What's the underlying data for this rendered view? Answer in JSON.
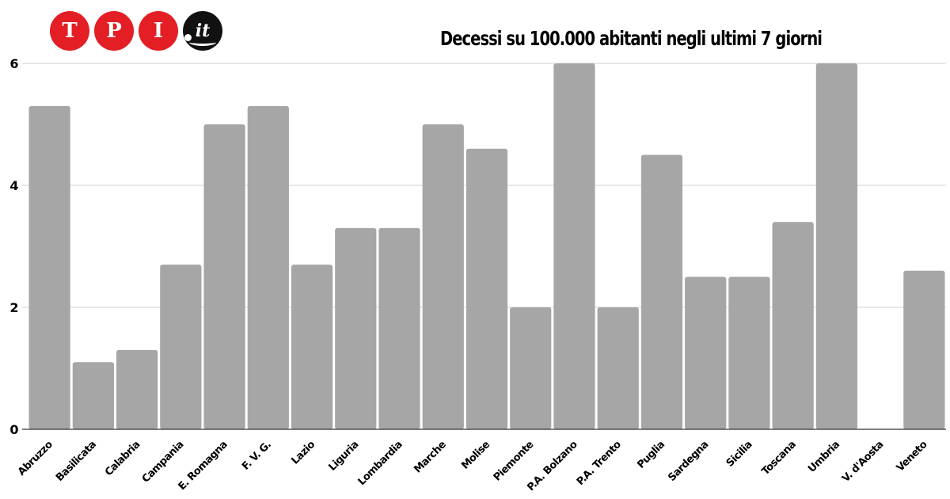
{
  "logo": {
    "letters": [
      "T",
      "P",
      "I"
    ],
    "suffix": "it"
  },
  "colors": {
    "bar": "#a6a6a6",
    "grid": "#d0d0d0",
    "axis": "#333333",
    "logo_red": "#e31e24",
    "logo_black": "#111111"
  },
  "chart_data": {
    "type": "bar",
    "title": "Decessi su 100.000 abitanti negli ultimi 7 giorni",
    "xlabel": "",
    "ylabel": "",
    "ylim": [
      0,
      6
    ],
    "yticks": [
      0,
      2,
      4,
      6
    ],
    "grid": true,
    "categories": [
      "Abruzzo",
      "Basilicata",
      "Calabria",
      "Campania",
      "E. Romagna",
      "F. V. G.",
      "Lazio",
      "Liguria",
      "Lombardia",
      "Marche",
      "Molise",
      "Piemonte",
      "P.A. Bolzano",
      "P.A. Trento",
      "Puglia",
      "Sardegna",
      "Sicilia",
      "Toscana",
      "Umbria",
      "V. d'Aosta",
      "Veneto"
    ],
    "values": [
      5.3,
      1.1,
      1.3,
      2.7,
      5.0,
      5.3,
      2.7,
      3.3,
      3.3,
      5.0,
      4.6,
      2.0,
      6.0,
      2.0,
      4.5,
      2.5,
      2.5,
      3.4,
      6.0,
      0,
      2.6
    ]
  }
}
